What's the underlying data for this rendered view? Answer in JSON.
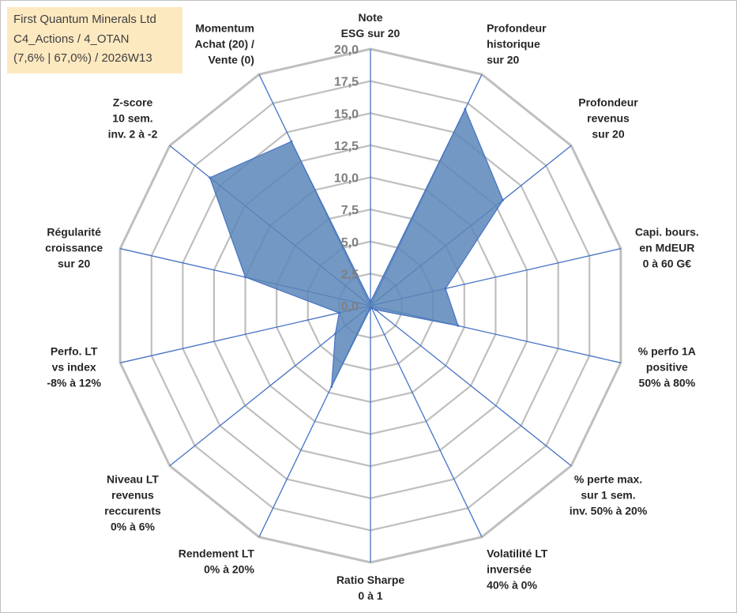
{
  "info": {
    "line1": "First Quantum Minerals Ltd",
    "line2": "C4_Actions / 4_OTAN",
    "line3": "(7,6% | 67,0%) / 2026W13"
  },
  "colors": {
    "fill": "#5b86b8",
    "stroke": "#4472c4",
    "grid": "#bfbfbf",
    "info_bg": "#fde9c0"
  },
  "chart_data": {
    "type": "radar",
    "title": "",
    "rmin": 0,
    "rmax": 20,
    "tick_step": 2.5,
    "tick_labels": [
      "0,0",
      "2,5",
      "5,0",
      "7,5",
      "10,0",
      "12,5",
      "15,0",
      "17,5",
      "20,0"
    ],
    "grid": true,
    "axes": [
      {
        "label": [
          "Note",
          "ESG sur 20"
        ],
        "value": 0.3
      },
      {
        "label": [
          "Profondeur",
          "historique",
          "sur 20"
        ],
        "value": 17.0
      },
      {
        "label": [
          "Profondeur",
          "revenus",
          "sur 20"
        ],
        "value": 13.2
      },
      {
        "label": [
          "Capi. bours.",
          "en MdEUR",
          "0 à 60 G€"
        ],
        "value": 6.0
      },
      {
        "label": [
          "% perfo 1A",
          "positive",
          "50% à 80%"
        ],
        "value": 7.0
      },
      {
        "label": [
          "% perte max.",
          "sur 1 sem.",
          "inv. 50% à 20%"
        ],
        "value": 0.5
      },
      {
        "label": [
          "Volatilité LT",
          "inversée",
          "40% à 0%"
        ],
        "value": 0.2
      },
      {
        "label": [
          "Ratio Sharpe",
          "0 à 1"
        ],
        "value": 0.2
      },
      {
        "label": [
          "Rendement LT",
          "0% à 20%"
        ],
        "value": 7.0
      },
      {
        "label": [
          "Niveau LT",
          "revenus",
          "reccurents",
          "0% à 6%"
        ],
        "value": 3.5
      },
      {
        "label": [
          "Perfo. LT",
          "vs index",
          "-8% à 12%"
        ],
        "value": 2.5
      },
      {
        "label": [
          "Régularité",
          "croissance",
          "sur 20"
        ],
        "value": 10.0
      },
      {
        "label": [
          "Z-score",
          "10 sem.",
          "inv. 2 à -2"
        ],
        "value": 16.0
      },
      {
        "label": [
          "Momentum",
          "Achat (20) /",
          "Vente (0)"
        ],
        "value": 14.2
      }
    ]
  }
}
